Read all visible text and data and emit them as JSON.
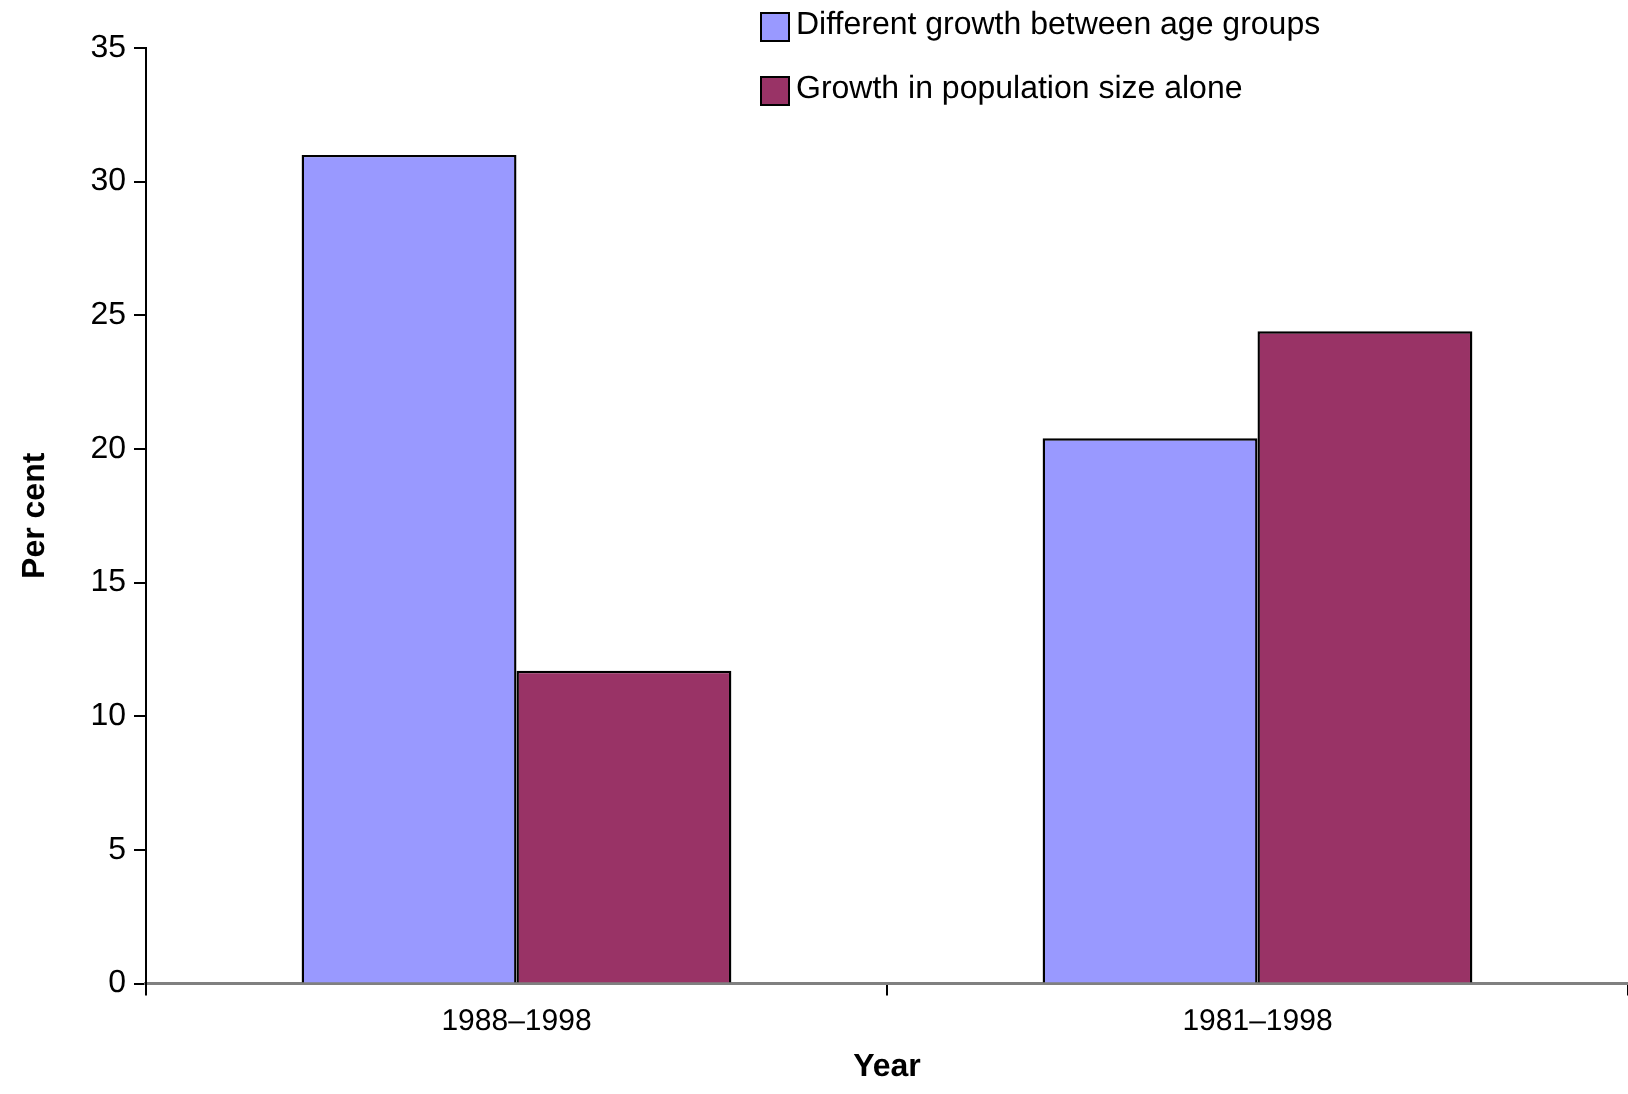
{
  "chart_data": {
    "type": "bar",
    "xlabel": "Year",
    "ylabel": "Per cent",
    "categories": [
      "1988–1998",
      "1981–1998"
    ],
    "series": [
      {
        "name": "Different growth between age groups",
        "color": "#9999ff",
        "values": [
          31.0,
          20.4
        ]
      },
      {
        "name": "Growth in population size alone",
        "color": "#993366",
        "values": [
          11.7,
          24.4
        ]
      }
    ],
    "ylim": [
      0,
      35
    ],
    "yticks": [
      0,
      5,
      10,
      15,
      20,
      25,
      30,
      35
    ],
    "grid": false,
    "legend": "top right"
  }
}
